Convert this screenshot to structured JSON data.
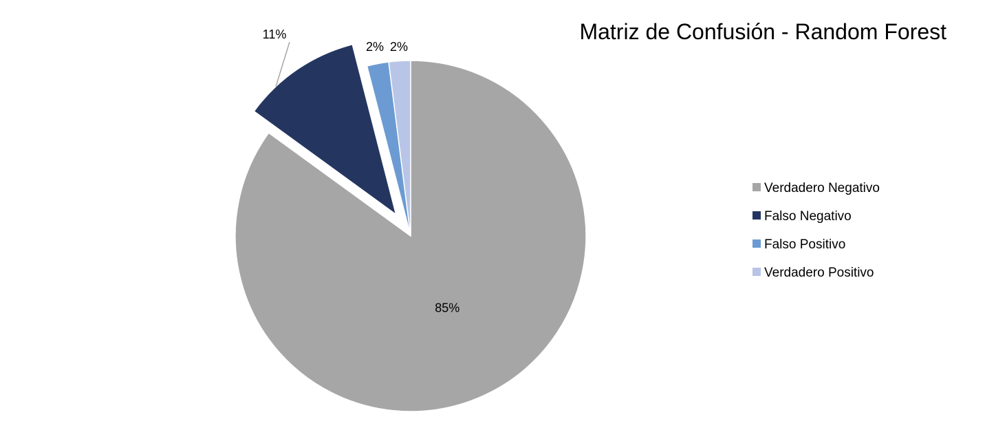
{
  "chart_data": {
    "type": "pie",
    "title": "Matriz de Confusión - Random Forest",
    "categories": [
      "Verdadero Negativo",
      "Falso Negativo",
      "Falso Positivo",
      "Verdadero Positivo"
    ],
    "values": [
      85,
      11,
      2,
      2
    ],
    "data_labels": [
      "85%",
      "11%",
      "2%",
      "2%"
    ],
    "colors": [
      "#a6a6a6",
      "#243660",
      "#6b9bd2",
      "#b9c5e6"
    ],
    "exploded": [
      false,
      true,
      false,
      false
    ],
    "legend_position": "right"
  }
}
